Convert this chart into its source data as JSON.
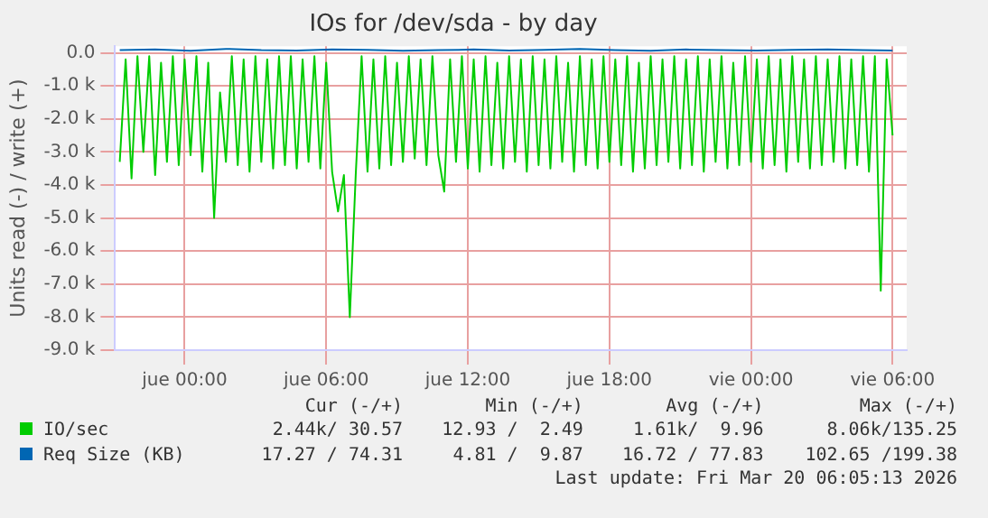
{
  "chart_data": {
    "type": "line",
    "title": "IOs for /dev/sda - by day",
    "ylabel": "Units read (-) / write (+)",
    "xlim": [
      "2026-03-18T21:03",
      "2026-03-20T06:36"
    ],
    "xticks": [
      {
        "value": "2026-03-19T00:00",
        "label": "jue 00:00"
      },
      {
        "value": "2026-03-19T06:00",
        "label": "jue 06:00"
      },
      {
        "value": "2026-03-19T12:00",
        "label": "jue 12:00"
      },
      {
        "value": "2026-03-19T18:00",
        "label": "jue 18:00"
      },
      {
        "value": "2026-03-20T00:00",
        "label": "vie 00:00"
      },
      {
        "value": "2026-03-20T06:00",
        "label": "vie 06:00"
      }
    ],
    "ylim": [
      -9,
      0.2
    ],
    "yticks": [
      {
        "value": -9,
        "label": "-9.0 k"
      },
      {
        "value": -8,
        "label": "-8.0 k"
      },
      {
        "value": -7,
        "label": "-7.0 k"
      },
      {
        "value": -6,
        "label": "-6.0 k"
      },
      {
        "value": -5,
        "label": "-5.0 k"
      },
      {
        "value": -4,
        "label": "-4.0 k"
      },
      {
        "value": -3,
        "label": "-3.0 k"
      },
      {
        "value": -2,
        "label": "-2.0 k"
      },
      {
        "value": -1,
        "label": "-1.0 k"
      },
      {
        "value": 0,
        "label": "0.0"
      }
    ],
    "grid": true,
    "legend": "bottom",
    "marker": "none",
    "line_style": "solid",
    "series": [
      {
        "name": "IO/sec",
        "color": "#00cc00",
        "x": [
          "2026-03-18T21:15",
          "2026-03-18T21:30",
          "2026-03-18T21:45",
          "2026-03-18T22:00",
          "2026-03-18T22:15",
          "2026-03-18T22:30",
          "2026-03-18T22:45",
          "2026-03-18T23:00",
          "2026-03-18T23:15",
          "2026-03-18T23:30",
          "2026-03-18T23:45",
          "2026-03-19T00:00",
          "2026-03-19T00:15",
          "2026-03-19T00:30",
          "2026-03-19T00:45",
          "2026-03-19T01:00",
          "2026-03-19T01:15",
          "2026-03-19T01:30",
          "2026-03-19T01:45",
          "2026-03-19T02:00",
          "2026-03-19T02:15",
          "2026-03-19T02:30",
          "2026-03-19T02:45",
          "2026-03-19T03:00",
          "2026-03-19T03:15",
          "2026-03-19T03:30",
          "2026-03-19T03:45",
          "2026-03-19T04:00",
          "2026-03-19T04:15",
          "2026-03-19T04:30",
          "2026-03-19T04:45",
          "2026-03-19T05:00",
          "2026-03-19T05:15",
          "2026-03-19T05:30",
          "2026-03-19T05:45",
          "2026-03-19T06:00",
          "2026-03-19T06:15",
          "2026-03-19T06:30",
          "2026-03-19T06:45",
          "2026-03-19T07:00",
          "2026-03-19T07:15",
          "2026-03-19T07:30",
          "2026-03-19T07:45",
          "2026-03-19T08:00",
          "2026-03-19T08:15",
          "2026-03-19T08:30",
          "2026-03-19T08:45",
          "2026-03-19T09:00",
          "2026-03-19T09:15",
          "2026-03-19T09:30",
          "2026-03-19T09:45",
          "2026-03-19T10:00",
          "2026-03-19T10:15",
          "2026-03-19T10:30",
          "2026-03-19T10:45",
          "2026-03-19T11:00",
          "2026-03-19T11:15",
          "2026-03-19T11:30",
          "2026-03-19T11:45",
          "2026-03-19T12:00",
          "2026-03-19T12:15",
          "2026-03-19T12:30",
          "2026-03-19T12:45",
          "2026-03-19T13:00",
          "2026-03-19T13:15",
          "2026-03-19T13:30",
          "2026-03-19T13:45",
          "2026-03-19T14:00",
          "2026-03-19T14:15",
          "2026-03-19T14:30",
          "2026-03-19T14:45",
          "2026-03-19T15:00",
          "2026-03-19T15:15",
          "2026-03-19T15:30",
          "2026-03-19T15:45",
          "2026-03-19T16:00",
          "2026-03-19T16:15",
          "2026-03-19T16:30",
          "2026-03-19T16:45",
          "2026-03-19T17:00",
          "2026-03-19T17:15",
          "2026-03-19T17:30",
          "2026-03-19T17:45",
          "2026-03-19T18:00",
          "2026-03-19T18:15",
          "2026-03-19T18:30",
          "2026-03-19T18:45",
          "2026-03-19T19:00",
          "2026-03-19T19:15",
          "2026-03-19T19:30",
          "2026-03-19T19:45",
          "2026-03-19T20:00",
          "2026-03-19T20:15",
          "2026-03-19T20:30",
          "2026-03-19T20:45",
          "2026-03-19T21:00",
          "2026-03-19T21:15",
          "2026-03-19T21:30",
          "2026-03-19T21:45",
          "2026-03-19T22:00",
          "2026-03-19T22:15",
          "2026-03-19T22:30",
          "2026-03-19T22:45",
          "2026-03-19T23:00",
          "2026-03-19T23:15",
          "2026-03-19T23:30",
          "2026-03-19T23:45",
          "2026-03-20T00:00",
          "2026-03-20T00:15",
          "2026-03-20T00:30",
          "2026-03-20T00:45",
          "2026-03-20T01:00",
          "2026-03-20T01:15",
          "2026-03-20T01:30",
          "2026-03-20T01:45",
          "2026-03-20T02:00",
          "2026-03-20T02:15",
          "2026-03-20T02:30",
          "2026-03-20T02:45",
          "2026-03-20T03:00",
          "2026-03-20T03:15",
          "2026-03-20T03:30",
          "2026-03-20T03:45",
          "2026-03-20T04:00",
          "2026-03-20T04:15",
          "2026-03-20T04:30",
          "2026-03-20T04:45",
          "2026-03-20T05:00",
          "2026-03-20T05:15",
          "2026-03-20T05:30",
          "2026-03-20T05:45",
          "2026-03-20T06:00"
        ],
        "values": [
          -3.3,
          -0.2,
          -3.8,
          -0.1,
          -3.0,
          -0.1,
          -3.7,
          -0.3,
          -3.3,
          -0.1,
          -3.4,
          -0.2,
          -3.1,
          -0.1,
          -3.6,
          -0.3,
          -5.0,
          -1.2,
          -3.3,
          -0.1,
          -3.4,
          -0.2,
          -3.6,
          -0.1,
          -3.3,
          -0.2,
          -3.5,
          -0.1,
          -3.4,
          -0.1,
          -3.5,
          -0.2,
          -3.3,
          -0.1,
          -3.5,
          -0.3,
          -3.6,
          -4.8,
          -3.7,
          -8.0,
          -3.7,
          -0.1,
          -3.6,
          -0.2,
          -3.5,
          -0.1,
          -3.4,
          -0.3,
          -3.3,
          -0.1,
          -3.2,
          -0.2,
          -3.4,
          -0.1,
          -3.1,
          -4.2,
          -0.2,
          -3.3,
          -0.1,
          -3.5,
          -0.2,
          -3.6,
          -0.1,
          -3.4,
          -0.3,
          -3.5,
          -0.1,
          -3.3,
          -0.2,
          -3.6,
          -0.1,
          -3.4,
          -0.2,
          -3.5,
          -0.1,
          -3.3,
          -0.3,
          -3.6,
          -0.1,
          -3.4,
          -0.2,
          -3.5,
          -0.1,
          -3.3,
          -0.2,
          -3.4,
          -0.1,
          -3.6,
          -0.3,
          -3.5,
          -0.1,
          -3.4,
          -0.2,
          -3.3,
          -0.1,
          -3.5,
          -0.2,
          -3.4,
          -0.1,
          -3.6,
          -0.2,
          -3.3,
          -0.1,
          -3.5,
          -0.3,
          -3.4,
          -0.1,
          -3.3,
          -0.2,
          -3.5,
          -0.1,
          -3.4,
          -0.2,
          -3.6,
          -0.1,
          -3.3,
          -0.2,
          -3.5,
          -0.1,
          -3.4,
          -0.2,
          -3.3,
          -0.1,
          -3.5,
          -0.2,
          -3.4,
          -0.1,
          -3.6,
          -0.1,
          -7.2,
          -0.2,
          -2.5
        ]
      },
      {
        "name": "Req Size (KB)",
        "color": "#0066b3",
        "x": [
          "2026-03-18T21:15",
          "2026-03-18T22:45",
          "2026-03-19T00:15",
          "2026-03-19T01:45",
          "2026-03-19T03:15",
          "2026-03-19T04:45",
          "2026-03-19T06:15",
          "2026-03-19T07:45",
          "2026-03-19T09:15",
          "2026-03-19T10:45",
          "2026-03-19T12:15",
          "2026-03-19T13:45",
          "2026-03-19T15:15",
          "2026-03-19T16:45",
          "2026-03-19T18:15",
          "2026-03-19T19:45",
          "2026-03-19T21:15",
          "2026-03-19T22:45",
          "2026-03-20T00:15",
          "2026-03-20T01:45",
          "2026-03-20T03:15",
          "2026-03-20T04:45",
          "2026-03-20T06:00"
        ],
        "values": [
          0.08,
          0.1,
          0.06,
          0.12,
          0.08,
          0.07,
          0.1,
          0.09,
          0.06,
          0.08,
          0.1,
          0.07,
          0.09,
          0.12,
          0.08,
          0.06,
          0.1,
          0.08,
          0.07,
          0.09,
          0.1,
          0.08,
          0.07
        ]
      }
    ],
    "annotations": [
      "Cur (-/+)",
      "Min (-/+)",
      "Avg (-/+)",
      "Max (-/+)",
      "2.44k/ 30.57",
      "12.93 /  2.49",
      "1.61k/  9.96",
      "8.06k/135.25",
      "17.27 / 74.31",
      "4.81 /  9.87",
      "16.72 / 77.83",
      "102.65 /199.38",
      "Last update: Fri Mar 20 06:05:13 2026"
    ]
  }
}
